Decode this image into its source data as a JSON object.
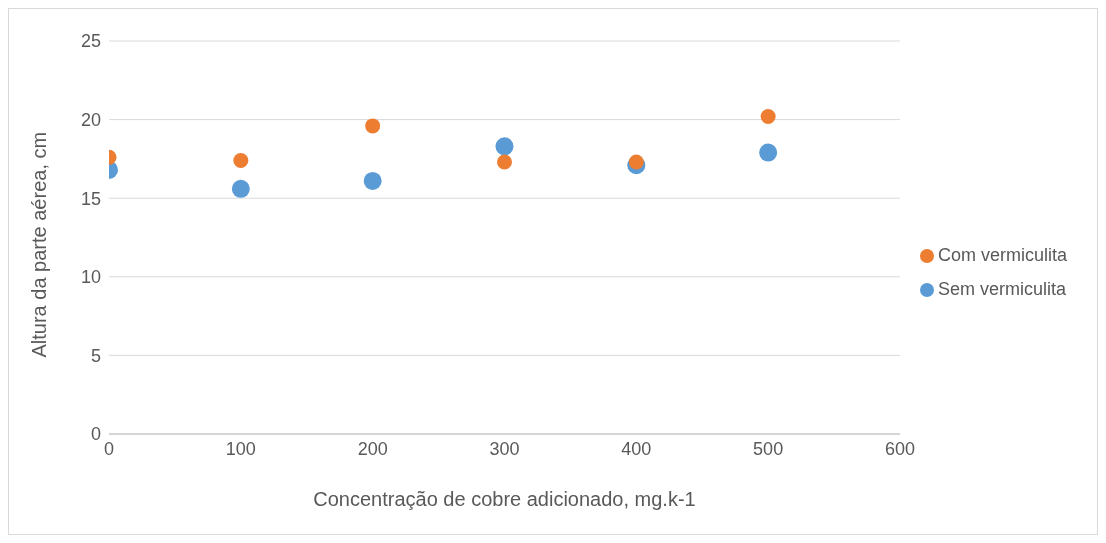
{
  "chart_data": {
    "type": "scatter",
    "xlabel": "Concentração de cobre adicionado, mg.k-1",
    "ylabel": "Altura da parte aérea, cm",
    "x": [
      0,
      100,
      200,
      300,
      400,
      500
    ],
    "series": [
      {
        "name": "Sem vermiculita",
        "color": "#5b9bd5",
        "values": [
          16.8,
          15.6,
          16.1,
          18.3,
          17.1,
          17.9
        ]
      },
      {
        "name": "Com vermiculita",
        "color": "#ed7d31",
        "values": [
          17.6,
          17.4,
          19.6,
          17.3,
          17.3,
          20.2
        ]
      }
    ],
    "xlim": [
      0,
      600
    ],
    "xticks": [
      0,
      100,
      200,
      300,
      400,
      500,
      600
    ],
    "ylim": [
      0,
      25
    ],
    "yticks": [
      0,
      5,
      10,
      15,
      20,
      25
    ],
    "grid": "y",
    "legend": "right",
    "marker": "circle"
  }
}
